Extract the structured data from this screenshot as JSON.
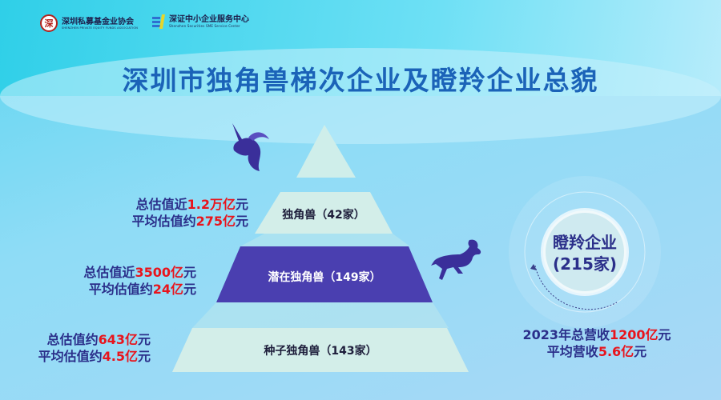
{
  "logos": [
    {
      "name": "深圳私募基金业协会",
      "sub": "SHENZHEN PRIVATE EQUITY FUNDS ASSOCIATION",
      "mark": "深"
    },
    {
      "name": "深证中小企业服务中心",
      "sub": "Shenzhen Securities SME Service Center"
    }
  ],
  "title": "深圳市独角兽梯次企业及瞪羚企业总貌",
  "pyramid": [
    {
      "label": "独角兽（42家）",
      "stat1_pre": "总估值近",
      "stat1_val": "1.2万亿",
      "stat1_post": "元",
      "stat2_pre": "平均估值约",
      "stat2_val": "275亿",
      "stat2_post": "元"
    },
    {
      "label": "潜在独角兽（149家）",
      "stat1_pre": "总估值近",
      "stat1_val": "3500亿",
      "stat1_post": "元",
      "stat2_pre": "平均估值约",
      "stat2_val": "24亿",
      "stat2_post": "元"
    },
    {
      "label": "种子独角兽（143家）",
      "stat1_pre": "总估值约",
      "stat1_val": "643亿",
      "stat1_post": "元",
      "stat2_pre": "平均估值约",
      "stat2_val": "4.5亿",
      "stat2_post": "元"
    }
  ],
  "gazelle": {
    "name": "瞪羚企业",
    "count": "(215家)",
    "rev_pre": "2023年总营收",
    "rev_val": "1200亿",
    "rev_post": "元",
    "avg_pre": "平均营收",
    "avg_val": "5.6亿",
    "avg_post": "元"
  },
  "colors": {
    "navy": "#2b2f8a",
    "red": "#e8141c",
    "title": "#1b63b8",
    "purple": "#4a3fb0",
    "mint": "#d3eee9"
  }
}
